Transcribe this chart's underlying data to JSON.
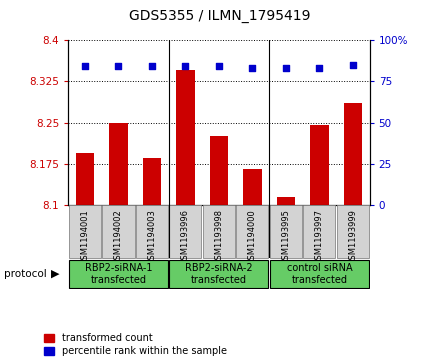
{
  "title": "GDS5355 / ILMN_1795419",
  "samples": [
    "GSM1194001",
    "GSM1194002",
    "GSM1194003",
    "GSM1193996",
    "GSM1193998",
    "GSM1194000",
    "GSM1193995",
    "GSM1193997",
    "GSM1193999"
  ],
  "red_values": [
    8.195,
    8.25,
    8.185,
    8.345,
    8.225,
    8.165,
    8.115,
    8.245,
    8.285
  ],
  "blue_values": [
    84,
    84,
    84,
    84,
    84,
    83,
    83,
    83,
    85
  ],
  "ylim_left": [
    8.1,
    8.4
  ],
  "ylim_right": [
    0,
    100
  ],
  "yticks_left": [
    8.1,
    8.175,
    8.25,
    8.325,
    8.4
  ],
  "yticks_right": [
    0,
    25,
    50,
    75,
    100
  ],
  "ytick_labels_left": [
    "8.1",
    "8.175",
    "8.25",
    "8.325",
    "8.4"
  ],
  "ytick_labels_right": [
    "0",
    "25",
    "50",
    "75",
    "100%"
  ],
  "groups": [
    {
      "label": "RBP2-siRNA-1\ntransfected",
      "start": 0,
      "end": 3,
      "color": "#66CC66"
    },
    {
      "label": "RBP2-siRNA-2\ntransfected",
      "start": 3,
      "end": 6,
      "color": "#66CC66"
    },
    {
      "label": "control siRNA\ntransfected",
      "start": 6,
      "end": 9,
      "color": "#66CC66"
    }
  ],
  "legend_red_label": "transformed count",
  "legend_blue_label": "percentile rank within the sample",
  "bar_color": "#CC0000",
  "dot_color": "#0000CC",
  "bar_width": 0.55,
  "protocol_label": "protocol",
  "tick_color_left": "#CC0000",
  "tick_color_right": "#0000CC",
  "background_color": "#ffffff",
  "sample_box_color": "#d3d3d3",
  "group_sep_color": "#888888"
}
